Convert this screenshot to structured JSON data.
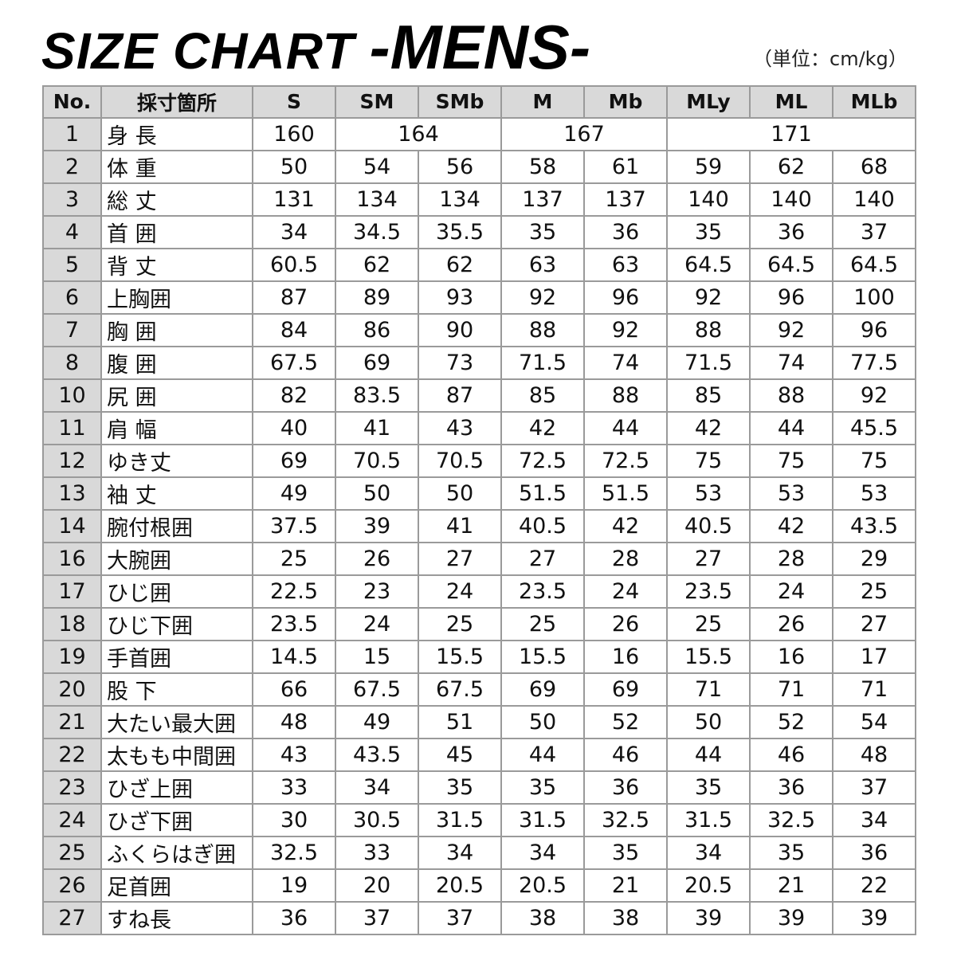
{
  "title": {
    "main": "SIZE CHART ",
    "sub": "-MENS-"
  },
  "unit_note": "（単位：cm/kg）",
  "table": {
    "headers": [
      "No.",
      "採寸箇所",
      "S",
      "SM",
      "SMb",
      "M",
      "Mb",
      "MLy",
      "ML",
      "MLb"
    ],
    "rows": [
      {
        "no": "1",
        "label": "身 長",
        "cells": [
          {
            "v": "160",
            "span": 1
          },
          {
            "v": "164",
            "span": 2
          },
          {
            "v": "167",
            "span": 2
          },
          {
            "v": "171",
            "span": 3
          }
        ]
      },
      {
        "no": "2",
        "label": "体 重",
        "values": [
          "50",
          "54",
          "56",
          "58",
          "61",
          "59",
          "62",
          "68"
        ]
      },
      {
        "no": "3",
        "label": "総 丈",
        "values": [
          "131",
          "134",
          "134",
          "137",
          "137",
          "140",
          "140",
          "140"
        ]
      },
      {
        "no": "4",
        "label": "首 囲",
        "values": [
          "34",
          "34.5",
          "35.5",
          "35",
          "36",
          "35",
          "36",
          "37"
        ]
      },
      {
        "no": "5",
        "label": "背 丈",
        "values": [
          "60.5",
          "62",
          "62",
          "63",
          "63",
          "64.5",
          "64.5",
          "64.5"
        ]
      },
      {
        "no": "6",
        "label": "上胸囲",
        "values": [
          "87",
          "89",
          "93",
          "92",
          "96",
          "92",
          "96",
          "100"
        ]
      },
      {
        "no": "7",
        "label": "胸 囲",
        "values": [
          "84",
          "86",
          "90",
          "88",
          "92",
          "88",
          "92",
          "96"
        ]
      },
      {
        "no": "8",
        "label": "腹 囲",
        "values": [
          "67.5",
          "69",
          "73",
          "71.5",
          "74",
          "71.5",
          "74",
          "77.5"
        ]
      },
      {
        "no": "10",
        "label": "尻 囲",
        "values": [
          "82",
          "83.5",
          "87",
          "85",
          "88",
          "85",
          "88",
          "92"
        ]
      },
      {
        "no": "11",
        "label": "肩 幅",
        "values": [
          "40",
          "41",
          "43",
          "42",
          "44",
          "42",
          "44",
          "45.5"
        ]
      },
      {
        "no": "12",
        "label": "ゆき丈",
        "values": [
          "69",
          "70.5",
          "70.5",
          "72.5",
          "72.5",
          "75",
          "75",
          "75"
        ]
      },
      {
        "no": "13",
        "label": "袖 丈",
        "values": [
          "49",
          "50",
          "50",
          "51.5",
          "51.5",
          "53",
          "53",
          "53"
        ]
      },
      {
        "no": "14",
        "label": "腕付根囲",
        "values": [
          "37.5",
          "39",
          "41",
          "40.5",
          "42",
          "40.5",
          "42",
          "43.5"
        ]
      },
      {
        "no": "16",
        "label": "大腕囲",
        "values": [
          "25",
          "26",
          "27",
          "27",
          "28",
          "27",
          "28",
          "29"
        ]
      },
      {
        "no": "17",
        "label": "ひじ囲",
        "values": [
          "22.5",
          "23",
          "24",
          "23.5",
          "24",
          "23.5",
          "24",
          "25"
        ]
      },
      {
        "no": "18",
        "label": "ひじ下囲",
        "values": [
          "23.5",
          "24",
          "25",
          "25",
          "26",
          "25",
          "26",
          "27"
        ]
      },
      {
        "no": "19",
        "label": "手首囲",
        "values": [
          "14.5",
          "15",
          "15.5",
          "15.5",
          "16",
          "15.5",
          "16",
          "17"
        ]
      },
      {
        "no": "20",
        "label": "股 下",
        "values": [
          "66",
          "67.5",
          "67.5",
          "69",
          "69",
          "71",
          "71",
          "71"
        ]
      },
      {
        "no": "21",
        "label": "大たい最大囲",
        "values": [
          "48",
          "49",
          "51",
          "50",
          "52",
          "50",
          "52",
          "54"
        ]
      },
      {
        "no": "22",
        "label": "太もも中間囲",
        "values": [
          "43",
          "43.5",
          "45",
          "44",
          "46",
          "44",
          "46",
          "48"
        ]
      },
      {
        "no": "23",
        "label": "ひざ上囲",
        "values": [
          "33",
          "34",
          "35",
          "35",
          "36",
          "35",
          "36",
          "37"
        ]
      },
      {
        "no": "24",
        "label": "ひざ下囲",
        "values": [
          "30",
          "30.5",
          "31.5",
          "31.5",
          "32.5",
          "31.5",
          "32.5",
          "34"
        ]
      },
      {
        "no": "25",
        "label": "ふくらはぎ囲",
        "values": [
          "32.5",
          "33",
          "34",
          "34",
          "35",
          "34",
          "35",
          "36"
        ]
      },
      {
        "no": "26",
        "label": "足首囲",
        "values": [
          "19",
          "20",
          "20.5",
          "20.5",
          "21",
          "20.5",
          "21",
          "22"
        ]
      },
      {
        "no": "27",
        "label": "すね長",
        "values": [
          "36",
          "37",
          "37",
          "38",
          "38",
          "39",
          "39",
          "39"
        ]
      }
    ]
  },
  "colors": {
    "header_bg": "#d9d9d9",
    "border": "#9a9a9a"
  }
}
